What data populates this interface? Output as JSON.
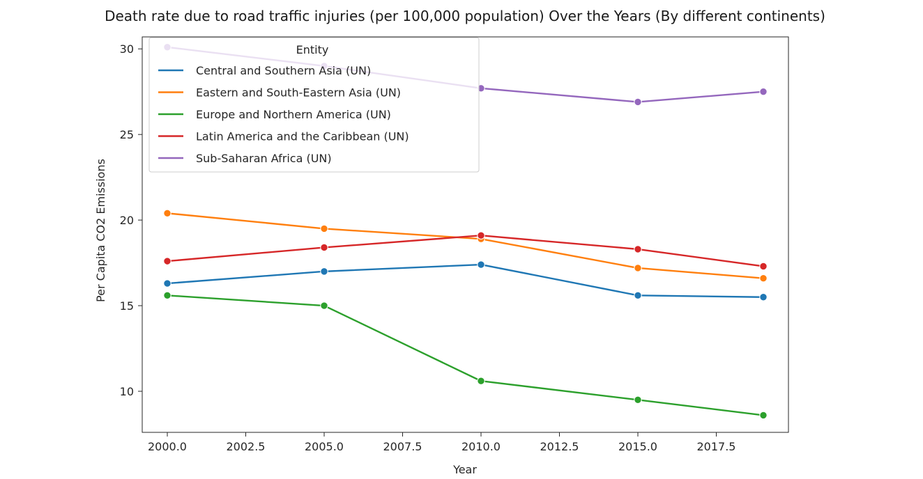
{
  "chart_data": {
    "type": "line",
    "title": "Death rate due to road traffic injuries (per 100,000 population) Over the Years (By different continents)",
    "xlabel": "Year",
    "ylabel": "Per Capita CO2 Emissions",
    "xlim": [
      1999.2,
      2019.8
    ],
    "ylim": [
      7.6,
      30.7
    ],
    "xticks": [
      2000.0,
      2002.5,
      2005.0,
      2007.5,
      2010.0,
      2012.5,
      2015.0,
      2017.5
    ],
    "xtick_labels": [
      "2000.0",
      "2002.5",
      "2005.0",
      "2007.5",
      "2010.0",
      "2012.5",
      "2015.0",
      "2017.5"
    ],
    "yticks": [
      10,
      15,
      20,
      25,
      30
    ],
    "ytick_labels": [
      "10",
      "15",
      "20",
      "25",
      "30"
    ],
    "x": [
      2000,
      2005,
      2010,
      2015,
      2019
    ],
    "grid": false,
    "legend": {
      "title": "Entity",
      "placement": "top-left"
    },
    "series": [
      {
        "name": "Central and Southern Asia (UN)",
        "color": "#1f77b4",
        "values": [
          16.3,
          17.0,
          17.4,
          15.6,
          15.5
        ]
      },
      {
        "name": "Eastern and South-Eastern Asia (UN)",
        "color": "#ff7f0e",
        "values": [
          20.4,
          19.5,
          18.9,
          17.2,
          16.6
        ]
      },
      {
        "name": "Europe and Northern America (UN)",
        "color": "#2ca02c",
        "values": [
          15.6,
          15.0,
          10.6,
          9.5,
          8.6
        ]
      },
      {
        "name": "Latin America and the Caribbean (UN)",
        "color": "#d62728",
        "values": [
          17.6,
          18.4,
          19.1,
          18.3,
          17.3
        ]
      },
      {
        "name": "Sub-Saharan Africa (UN)",
        "color": "#9467bd",
        "values": [
          30.1,
          29.0,
          27.7,
          26.9,
          27.5
        ]
      }
    ]
  }
}
